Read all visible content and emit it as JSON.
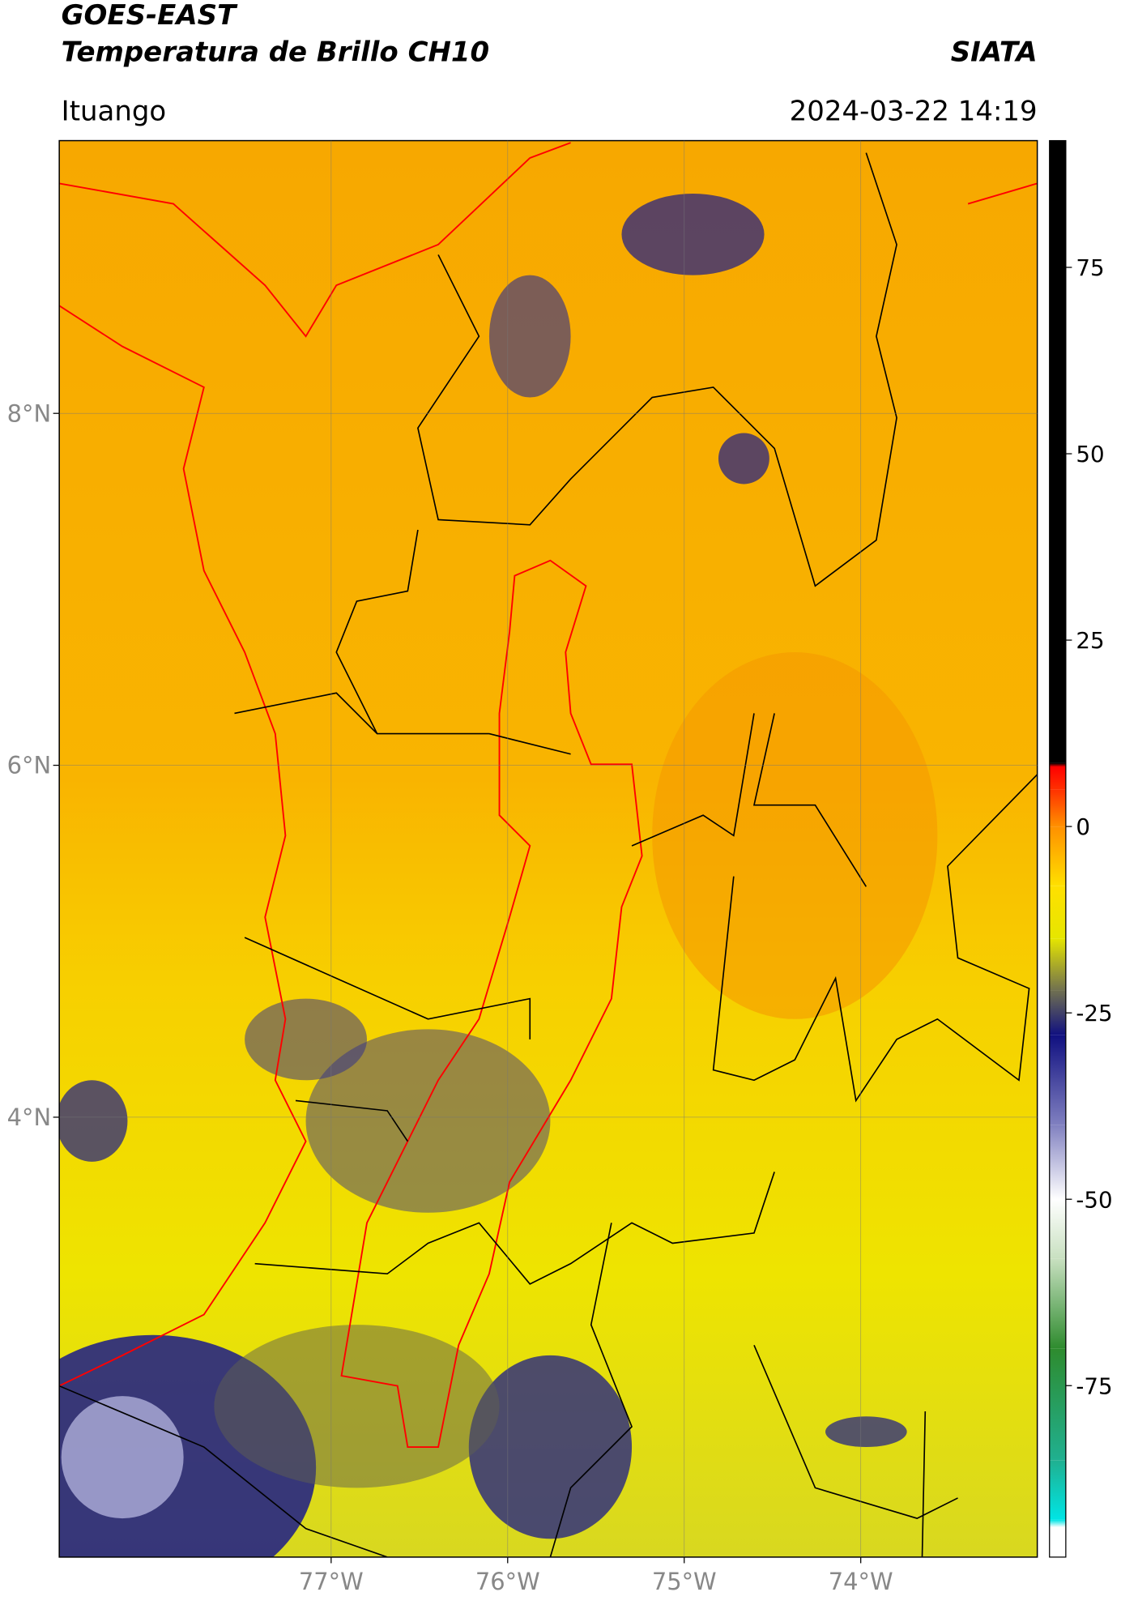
{
  "header": {
    "title": "GOES-EAST",
    "subtitle": "Temperatura de Brillo CH10",
    "source": "SIATA",
    "region": "Ituango",
    "datetime": "2024-03-22 14:19"
  },
  "map": {
    "xlim": [
      -78.54,
      -73.0
    ],
    "ylim": [
      1.5,
      9.55
    ],
    "xticks": [
      {
        "value": -77,
        "label": "77°W"
      },
      {
        "value": -76,
        "label": "76°W"
      },
      {
        "value": -75,
        "label": "75°W"
      },
      {
        "value": -74,
        "label": "74°W"
      }
    ],
    "yticks": [
      {
        "value": 8,
        "label": "8°N"
      },
      {
        "value": 6,
        "label": "6°N"
      },
      {
        "value": 4,
        "label": "4°N"
      }
    ],
    "grid": true
  },
  "colorbar": {
    "range": [
      -98,
      92
    ],
    "ticks": [
      75,
      50,
      25,
      0,
      -25,
      -50,
      -75
    ],
    "stops": [
      {
        "value": -98,
        "color": "#ffffff"
      },
      {
        "value": -94,
        "color": "#ffffff"
      },
      {
        "value": -93,
        "color": "#00e5e5"
      },
      {
        "value": -85,
        "color": "#20b090"
      },
      {
        "value": -70,
        "color": "#2e8b2e"
      },
      {
        "value": -58,
        "color": "#c8e0c0"
      },
      {
        "value": -50,
        "color": "#ffffff"
      },
      {
        "value": -40,
        "color": "#8080c0"
      },
      {
        "value": -28,
        "color": "#101080"
      },
      {
        "value": -22,
        "color": "#707050"
      },
      {
        "value": -15,
        "color": "#e6e600"
      },
      {
        "value": -8,
        "color": "#ffe000"
      },
      {
        "value": 0,
        "color": "#ff9000"
      },
      {
        "value": 5,
        "color": "#ff3000"
      },
      {
        "value": 8,
        "color": "#ff0000"
      },
      {
        "value": 8.5,
        "color": "#000000"
      },
      {
        "value": 92,
        "color": "#000000"
      }
    ]
  }
}
